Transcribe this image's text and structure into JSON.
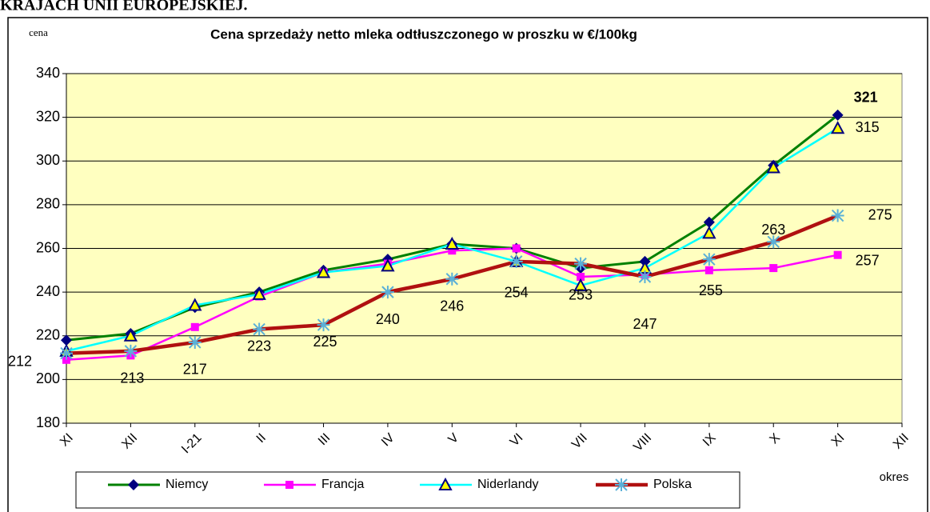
{
  "header": "KRAJACH UNII EUROPEJSKIEJ.",
  "chart_data": {
    "type": "line",
    "title": "Cena sprzedaży netto mleka odtłuszczonego w proszku w €/100kg",
    "ylabel": "cena",
    "xlabel": "okres",
    "categories": [
      "XI",
      "XII",
      "I-21",
      "II",
      "III",
      "IV",
      "V",
      "VI",
      "VII",
      "VIII",
      "IX",
      "X",
      "XI",
      "XII"
    ],
    "ylim": [
      180,
      340
    ],
    "yticks": [
      180,
      200,
      220,
      240,
      260,
      280,
      300,
      320,
      340
    ],
    "grid": true,
    "legend": "bottom",
    "series": [
      {
        "name": "Niemcy",
        "color": "#008000",
        "marker": "diamond",
        "marker_color": "#000080",
        "values": [
          218,
          221,
          233,
          240,
          250,
          255,
          262,
          260,
          251,
          254,
          272,
          298,
          321,
          null
        ]
      },
      {
        "name": "Francja",
        "color": "#ff00ff",
        "marker": "square",
        "marker_color": "#ff00ff",
        "values": [
          209,
          211,
          224,
          238,
          249,
          253,
          259,
          260,
          247,
          248,
          250,
          251,
          257,
          null
        ]
      },
      {
        "name": "Niderlandy",
        "color": "#00ffff",
        "marker": "triangle",
        "marker_color": "#ffff00",
        "values": [
          213,
          220,
          234,
          239,
          249,
          252,
          262,
          254,
          243,
          251,
          267,
          297,
          315,
          null
        ]
      },
      {
        "name": "Polska",
        "color": "#b01010",
        "marker": "asterisk",
        "marker_color": "#5ab0d8",
        "values": [
          212,
          213,
          217,
          223,
          225,
          240,
          246,
          254,
          253,
          247,
          255,
          263,
          275,
          null
        ]
      }
    ]
  }
}
